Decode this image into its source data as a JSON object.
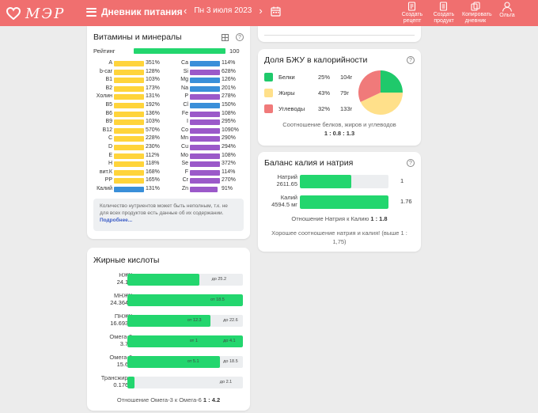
{
  "header": {
    "logo_text": "МЭР",
    "menu_label": "Дневник питания",
    "date": "Пн 3 июля 2023",
    "actions": [
      {
        "label_1": "Создать",
        "label_2": "рецепт",
        "icon": "recipe-add-icon"
      },
      {
        "label_1": "Создать",
        "label_2": "продукт",
        "icon": "product-add-icon"
      },
      {
        "label_1": "Копировать",
        "label_2": "дневник",
        "icon": "copy-diary-icon"
      },
      {
        "label_1": "Ольга",
        "label_2": "",
        "icon": "user-icon"
      }
    ]
  },
  "colors": {
    "brand": "#f06f6f",
    "green": "#23d66e",
    "yellow": "#ffd43b",
    "blue": "#3a8fd9",
    "purple": "#9b59c9",
    "protein": "#1fc96b",
    "fat": "#ffe08a",
    "carb": "#f07a7a"
  },
  "vitamins": {
    "title": "Витамины и минералы",
    "rating_label": "Рейтинг",
    "rating_value": "100",
    "rating_fraction": 1.0,
    "left": [
      {
        "name": "A",
        "pct": "351%",
        "color": "yellow",
        "level": 1.0
      },
      {
        "name": "b-car",
        "pct": "128%",
        "color": "yellow",
        "level": 1.0
      },
      {
        "name": "B1",
        "pct": "103%",
        "color": "yellow",
        "level": 1.0
      },
      {
        "name": "B2",
        "pct": "173%",
        "color": "yellow",
        "level": 1.0
      },
      {
        "name": "Холин",
        "pct": "131%",
        "color": "yellow",
        "level": 1.0
      },
      {
        "name": "B5",
        "pct": "192%",
        "color": "yellow",
        "level": 1.0
      },
      {
        "name": "B6",
        "pct": "136%",
        "color": "yellow",
        "level": 1.0
      },
      {
        "name": "B9",
        "pct": "103%",
        "color": "yellow",
        "level": 1.0
      },
      {
        "name": "B12",
        "pct": "570%",
        "color": "yellow",
        "level": 1.0
      },
      {
        "name": "C",
        "pct": "228%",
        "color": "yellow",
        "level": 1.0
      },
      {
        "name": "D",
        "pct": "230%",
        "color": "yellow",
        "level": 1.0
      },
      {
        "name": "E",
        "pct": "112%",
        "color": "yellow",
        "level": 1.0
      },
      {
        "name": "H",
        "pct": "118%",
        "color": "yellow",
        "level": 1.0
      },
      {
        "name": "вит.К",
        "pct": "168%",
        "color": "yellow",
        "level": 1.0
      },
      {
        "name": "PP",
        "pct": "165%",
        "color": "yellow",
        "level": 1.0
      },
      {
        "name": "Калий",
        "pct": "131%",
        "color": "blue",
        "level": 1.0
      }
    ],
    "right": [
      {
        "name": "Ca",
        "pct": "114%",
        "color": "blue",
        "level": 1.0
      },
      {
        "name": "Si",
        "pct": "628%",
        "color": "purple",
        "level": 1.0
      },
      {
        "name": "Mg",
        "pct": "126%",
        "color": "blue",
        "level": 1.0
      },
      {
        "name": "Na",
        "pct": "201%",
        "color": "blue",
        "level": 1.0
      },
      {
        "name": "P",
        "pct": "278%",
        "color": "purple",
        "level": 1.0
      },
      {
        "name": "Cl",
        "pct": "150%",
        "color": "blue",
        "level": 1.0
      },
      {
        "name": "Fe",
        "pct": "108%",
        "color": "purple",
        "level": 1.0
      },
      {
        "name": "I",
        "pct": "295%",
        "color": "purple",
        "level": 1.0
      },
      {
        "name": "Co",
        "pct": "1090%",
        "color": "purple",
        "level": 1.0
      },
      {
        "name": "Mn",
        "pct": "290%",
        "color": "purple",
        "level": 1.0
      },
      {
        "name": "Cu",
        "pct": "294%",
        "color": "purple",
        "level": 1.0
      },
      {
        "name": "Mo",
        "pct": "108%",
        "color": "purple",
        "level": 1.0
      },
      {
        "name": "Se",
        "pct": "372%",
        "color": "purple",
        "level": 1.0
      },
      {
        "name": "F",
        "pct": "114%",
        "color": "purple",
        "level": 1.0
      },
      {
        "name": "Cr",
        "pct": "270%",
        "color": "purple",
        "level": 1.0
      },
      {
        "name": "Zn",
        "pct": "91%",
        "color": "purple",
        "level": 0.91
      }
    ],
    "note": "Количество нутриентов может быть неполным, т.к. не для всех продуктов есть данные об их содержании.",
    "note_link": "Подробнее..."
  },
  "fatty": {
    "title": "Жирные кислоты",
    "rows": [
      {
        "name": "НЖК",
        "amount": "24.1 г",
        "fill": 0.62,
        "ticks": [
          {
            "text": "до 25.2",
            "at": 0.73
          }
        ]
      },
      {
        "name": "МНЖК",
        "amount": "24.364 г",
        "fill": 1.0,
        "ticks": [
          {
            "text": "от 18.5",
            "at": 0.72
          }
        ]
      },
      {
        "name": "ПНЖК",
        "amount": "16.693 г",
        "fill": 0.72,
        "ticks": [
          {
            "text": "от 12.3",
            "at": 0.52
          },
          {
            "text": "до 22.6",
            "at": 0.83
          }
        ]
      },
      {
        "name": "Омега-3",
        "amount": "3.7 г",
        "fill": 1.0,
        "ticks": [
          {
            "text": "от 1",
            "at": 0.54
          },
          {
            "text": "до 4.1",
            "at": 0.83
          }
        ]
      },
      {
        "name": "Омега-6",
        "amount": "15.6 г",
        "fill": 0.8,
        "ticks": [
          {
            "text": "от 5.1",
            "at": 0.52
          },
          {
            "text": "до 18.5",
            "at": 0.83
          }
        ]
      },
      {
        "name": "Трансжиры",
        "amount": "0.176 г",
        "fill": 0.06,
        "ticks": [
          {
            "text": "до 2.1",
            "at": 0.8
          }
        ]
      }
    ],
    "ratio_label": "Отношение Омега-3 к Омега-6",
    "ratio_value": "1 : 4.2"
  },
  "bju": {
    "title": "Доля БЖУ в калорийности",
    "rows": [
      {
        "name": "Белки",
        "pct": "25%",
        "grams": "104г",
        "color": "protein"
      },
      {
        "name": "Жиры",
        "pct": "43%",
        "grams": "79г",
        "color": "fat"
      },
      {
        "name": "Углеводы",
        "pct": "32%",
        "grams": "133г",
        "color": "carb"
      }
    ],
    "pie_shares": [
      25,
      43,
      32
    ],
    "note": "Соотношение белков, жиров и углеводов",
    "ratio": "1 : 0.8 : 1.3"
  },
  "kna": {
    "title": "Баланс калия и натрия",
    "rows": [
      {
        "name": "Натрий",
        "amount": "2611.65",
        "fill": 0.58,
        "num": "1"
      },
      {
        "name": "Калий",
        "amount": "4594.5 мг",
        "fill": 1.0,
        "num": "1.76"
      }
    ],
    "ratio_label": "Отношение Натрия к Калию",
    "ratio_value": "1 : 1.8",
    "message": "Хорошее соотношение натрия и калия! (выше 1 : 1,75)"
  }
}
